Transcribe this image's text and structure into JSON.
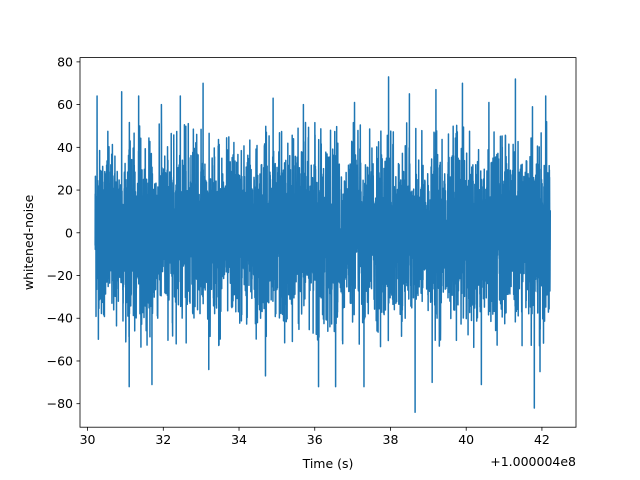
{
  "chart_data": {
    "type": "line",
    "xlabel": "Time (s)",
    "ylabel": "whitened-noise",
    "x_offset_label": "+1.000004e8",
    "xlim": [
      29.8,
      42.9
    ],
    "ylim": [
      -91,
      82
    ],
    "x_ticks": [
      30,
      32,
      34,
      36,
      38,
      40,
      42
    ],
    "x_tick_labels": [
      "30",
      "32",
      "34",
      "36",
      "38",
      "40",
      "42"
    ],
    "y_ticks": [
      80,
      60,
      40,
      20,
      0,
      -20,
      -40,
      -60,
      -80
    ],
    "y_tick_labels": [
      "80",
      "60",
      "40",
      "20",
      "0",
      "−20",
      "−40",
      "−60",
      "−80"
    ],
    "grid": false,
    "series": [
      {
        "color": "#1f77b4",
        "x_range": [
          30.2,
          42.22
        ],
        "peaks": [
          {
            "x": 30.25,
            "y": 64
          },
          {
            "x": 30.9,
            "y": 66
          },
          {
            "x": 31.35,
            "y": 64
          },
          {
            "x": 31.95,
            "y": 60
          },
          {
            "x": 32.45,
            "y": 64
          },
          {
            "x": 33.05,
            "y": 70
          },
          {
            "x": 34.9,
            "y": 63
          },
          {
            "x": 35.7,
            "y": 60
          },
          {
            "x": 37.05,
            "y": 61
          },
          {
            "x": 37.95,
            "y": 73
          },
          {
            "x": 38.5,
            "y": 65
          },
          {
            "x": 39.2,
            "y": 67
          },
          {
            "x": 39.9,
            "y": 70
          },
          {
            "x": 40.6,
            "y": 61
          },
          {
            "x": 41.3,
            "y": 72
          },
          {
            "x": 41.75,
            "y": 59
          },
          {
            "x": 42.1,
            "y": 64
          }
        ],
        "troughs": [
          {
            "x": 31.1,
            "y": -72
          },
          {
            "x": 31.7,
            "y": -71
          },
          {
            "x": 33.2,
            "y": -64
          },
          {
            "x": 34.7,
            "y": -67
          },
          {
            "x": 36.1,
            "y": -72
          },
          {
            "x": 36.55,
            "y": -72
          },
          {
            "x": 37.3,
            "y": -72
          },
          {
            "x": 38.65,
            "y": -84
          },
          {
            "x": 39.1,
            "y": -70
          },
          {
            "x": 40.4,
            "y": -71
          },
          {
            "x": 41.8,
            "y": -82
          },
          {
            "x": 41.95,
            "y": -65
          }
        ]
      }
    ]
  }
}
